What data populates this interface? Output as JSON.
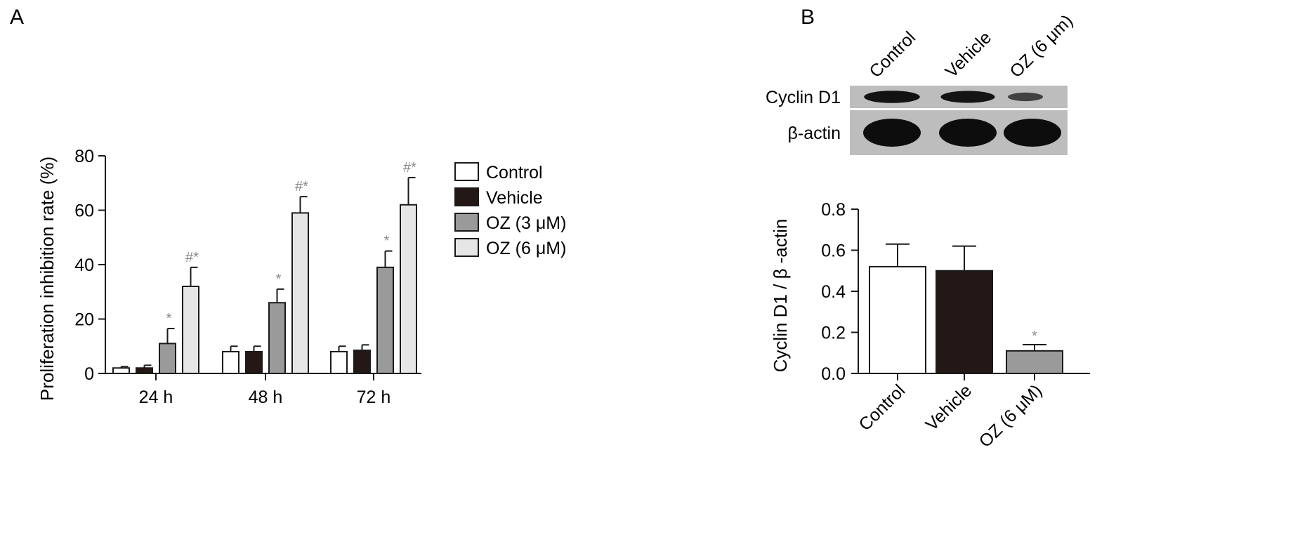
{
  "panels": {
    "a_label": "A",
    "b_label": "B"
  },
  "colors": {
    "control": "#ffffff",
    "vehicle": "#231816",
    "oz3": "#9a9a9a",
    "oz6": "#e6e6e6",
    "stroke": "#1a1a1a",
    "significance": "#8a8a8a",
    "blot_bg": "#bdbdbd",
    "blot_band": "#0d0d0d"
  },
  "blot": {
    "lane_labels": [
      "Control",
      "Vehicle",
      "OZ (6 μm)"
    ],
    "row_labels": [
      "Cyclin D1",
      "β-actin"
    ],
    "band_intensity": {
      "Cyclin D1": [
        0.95,
        0.9,
        0.35
      ],
      "β-actin": [
        1.0,
        1.0,
        1.0
      ]
    }
  },
  "chart_data": [
    {
      "type": "bar",
      "panel": "A",
      "ylabel": "Proliferation inhibition rate (%)",
      "xlabel": "",
      "ylim": [
        0,
        80
      ],
      "yticks": [
        0,
        20,
        40,
        60,
        80
      ],
      "categories": [
        "24 h",
        "48 h",
        "72 h"
      ],
      "legend": {
        "position": "right"
      },
      "series": [
        {
          "name": "Control",
          "color_key": "control",
          "values": [
            2,
            8,
            8
          ],
          "errors": [
            0.5,
            2,
            2
          ],
          "marks": [
            "",
            "",
            ""
          ]
        },
        {
          "name": "Vehicle",
          "color_key": "vehicle",
          "values": [
            2,
            8,
            8.5
          ],
          "errors": [
            1,
            2,
            2
          ],
          "marks": [
            "",
            "",
            ""
          ]
        },
        {
          "name": "OZ (3 μM)",
          "color_key": "oz3",
          "values": [
            11,
            26,
            39
          ],
          "errors": [
            5.5,
            5,
            6
          ],
          "marks": [
            "*",
            "*",
            "*"
          ]
        },
        {
          "name": "OZ (6 μM)",
          "color_key": "oz6",
          "values": [
            32,
            59,
            62
          ],
          "errors": [
            7,
            6,
            10
          ],
          "marks": [
            "#*",
            "#*",
            "#*"
          ]
        }
      ]
    },
    {
      "type": "bar",
      "panel": "B",
      "ylabel": "Cyclin D1 / β -actin",
      "xlabel": "",
      "ylim": [
        0,
        0.8
      ],
      "yticks": [
        "0.0",
        "0.2",
        "0.4",
        "0.6",
        "0.8"
      ],
      "categories": [
        "Control",
        "Vehicle",
        "OZ (6 μM)"
      ],
      "color_keys": [
        "control",
        "vehicle",
        "oz3"
      ],
      "values": [
        0.52,
        0.5,
        0.11
      ],
      "errors": [
        0.11,
        0.12,
        0.03
      ],
      "marks": [
        "",
        "",
        "*"
      ]
    }
  ]
}
